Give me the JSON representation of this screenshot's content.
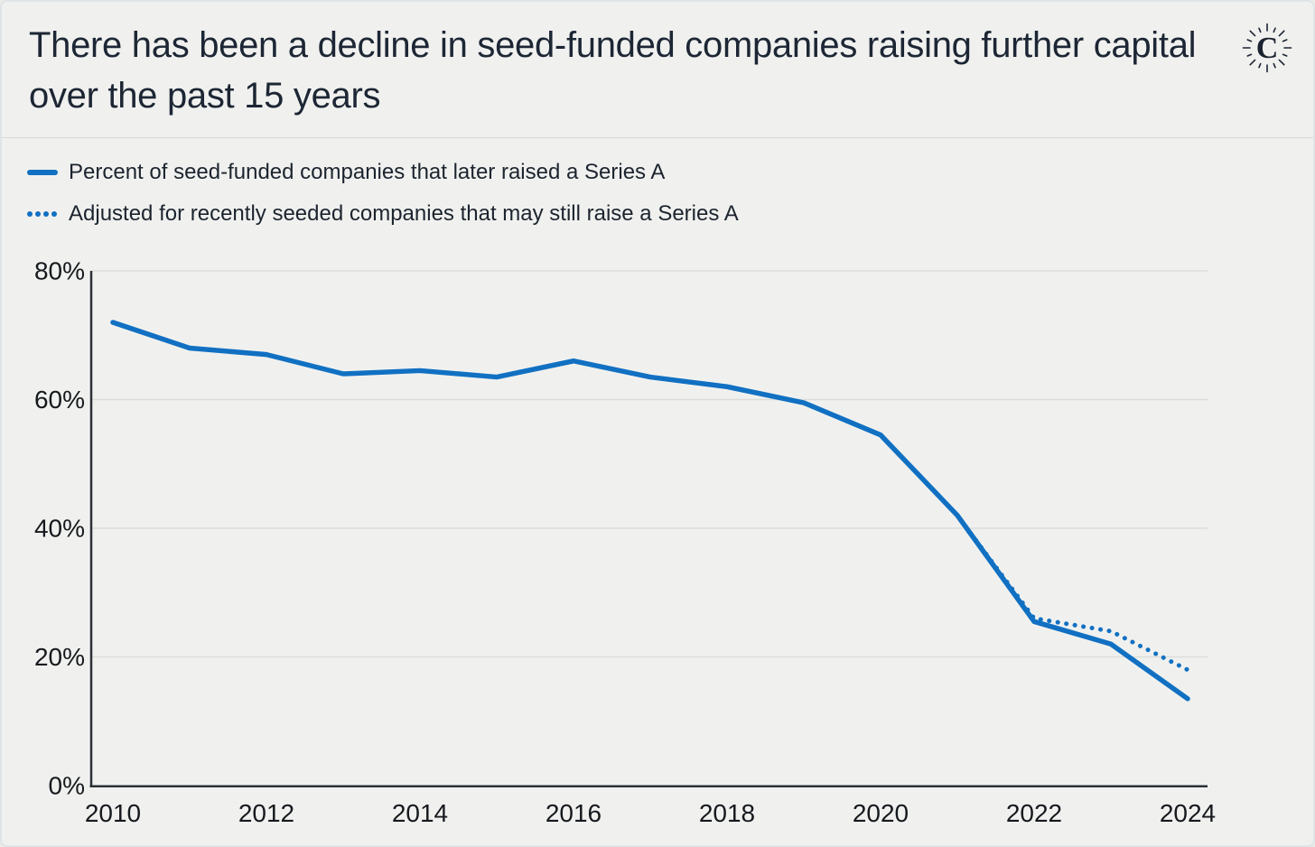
{
  "card": {
    "title": "There has been a decline in seed-funded companies raising further capital over the past 15 years",
    "logo_glyph": "C"
  },
  "legend": {
    "items": [
      {
        "label": "Percent of seed-funded companies that later raised a Series A",
        "marker": "solid-line"
      },
      {
        "label": "Adjusted for recently seeded companies that may still raise a Series A",
        "marker": "dotted-line"
      }
    ]
  },
  "colors": {
    "accent_blue": "#1170c2",
    "background": "#f0f1ef",
    "title_text": "#1d2634",
    "axis_text": "#16191d",
    "gridline": "#dbddDb",
    "axis_line": "#2b3036"
  },
  "chart_data": {
    "type": "line",
    "title": "There has been a decline in seed-funded companies raising further capital over the past 15 years",
    "xlabel": "",
    "ylabel": "",
    "xlim": [
      2010,
      2024
    ],
    "ylim": [
      0,
      80
    ],
    "grid": "horizontal",
    "legend_position": "top-left",
    "x_ticks": [
      "2010",
      "2012",
      "2014",
      "2016",
      "2018",
      "2020",
      "2022",
      "2024"
    ],
    "y_ticks": [
      "0%",
      "20%",
      "40%",
      "60%",
      "80%"
    ],
    "series": [
      {
        "name": "Percent of seed-funded companies that later raised a Series A",
        "style": "solid",
        "x": [
          2010,
          2011,
          2012,
          2013,
          2014,
          2015,
          2016,
          2017,
          2018,
          2019,
          2020,
          2021,
          2022,
          2023,
          2024
        ],
        "values": [
          72,
          68,
          67,
          64,
          64.5,
          63.5,
          66,
          63.5,
          62,
          59.5,
          54.5,
          42,
          25.5,
          22,
          13.5
        ]
      },
      {
        "name": "Adjusted for recently seeded companies that may still raise a Series A",
        "style": "dotted",
        "x": [
          2019,
          2020,
          2021,
          2022,
          2023,
          2024
        ],
        "values": [
          59.5,
          54.5,
          42,
          26,
          24,
          18
        ]
      }
    ]
  }
}
